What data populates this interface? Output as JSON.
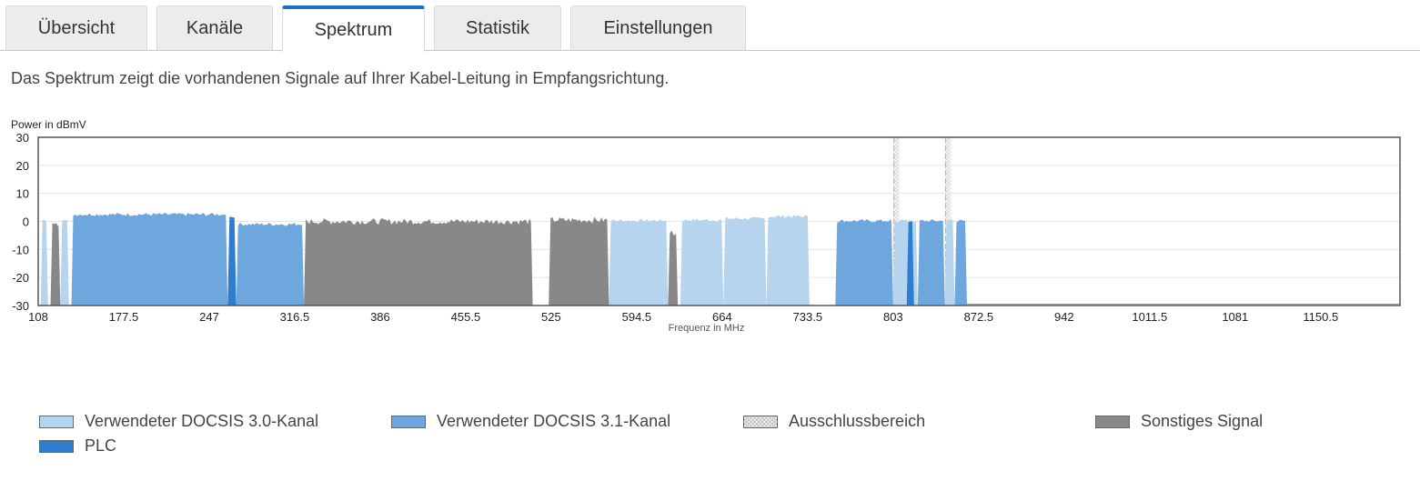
{
  "tabs": [
    {
      "label": "Übersicht",
      "active": false
    },
    {
      "label": "Kanäle",
      "active": false
    },
    {
      "label": "Spektrum",
      "active": true
    },
    {
      "label": "Statistik",
      "active": false
    },
    {
      "label": "Einstellungen",
      "active": false
    }
  ],
  "description": "Das Spektrum zeigt die vorhandenen Signale auf Ihrer Kabel-Leitung in Empfangsrichtung.",
  "colors": {
    "accent": "#1a74c6",
    "docsis30": "#b7d4ee",
    "docsis31": "#6ea7dd",
    "plc": "#2f7dd1",
    "other": "#888888",
    "exclusion": "#ececec"
  },
  "chart_data": {
    "type": "area",
    "ylabel": "Power in dBmV",
    "xlabel": "Frequenz in MHz",
    "ylim": [
      -30,
      30
    ],
    "xlim": [
      108,
      1215
    ],
    "yticks": [
      "30",
      "20",
      "10",
      "0",
      "-10",
      "-20",
      "-30"
    ],
    "xticks": [
      "108",
      "177.5",
      "247",
      "316.5",
      "386",
      "455.5",
      "525",
      "594.5",
      "664",
      "733.5",
      "803",
      "872.5",
      "942",
      "1011.5",
      "1081",
      "1150.5"
    ],
    "grid": true,
    "series": [
      {
        "name": "Verwendeter DOCSIS 3.0-Kanal",
        "segments": [
          [
            110,
            116,
            0.5
          ],
          [
            126,
            133,
            0.5
          ],
          [
            572,
            620,
            0.3
          ],
          [
            630,
            665,
            0.5
          ],
          [
            665,
            700,
            1.0
          ],
          [
            700,
            735,
            1.8
          ],
          [
            803,
            823,
            0.3
          ],
          [
            845,
            853,
            0.3
          ]
        ]
      },
      {
        "name": "Verwendeter DOCSIS 3.1-Kanal",
        "segments": [
          [
            135,
            262,
            2.5
          ],
          [
            269,
            324,
            -1.0
          ],
          [
            756,
            803,
            0.2
          ],
          [
            823,
            845,
            0.2
          ],
          [
            853,
            863,
            0.2
          ]
        ]
      },
      {
        "name": "PLC",
        "segments": [
          [
            262,
            269,
            1.5
          ],
          [
            814,
            820,
            0.3
          ]
        ]
      },
      {
        "name": "Sonstiges Signal",
        "segments": [
          [
            118,
            126,
            -1.5
          ],
          [
            324,
            510,
            0.0
          ],
          [
            523,
            572,
            0.5
          ],
          [
            620,
            628,
            -4.0
          ]
        ]
      },
      {
        "name": "Ausschlussbereich",
        "segments": [
          [
            803,
            808
          ],
          [
            845,
            850
          ]
        ]
      }
    ],
    "legend": [
      {
        "label": "Verwendeter DOCSIS 3.0-Kanal",
        "color": "#b7d4ee"
      },
      {
        "label": "Verwendeter DOCSIS 3.1-Kanal",
        "color": "#6ea7dd"
      },
      {
        "label": "Ausschlussbereich",
        "color": "#ececec"
      },
      {
        "label": "Sonstiges Signal",
        "color": "#888888"
      },
      {
        "label": "PLC",
        "color": "#2f7dd1"
      }
    ],
    "legend_position": "bottom"
  }
}
